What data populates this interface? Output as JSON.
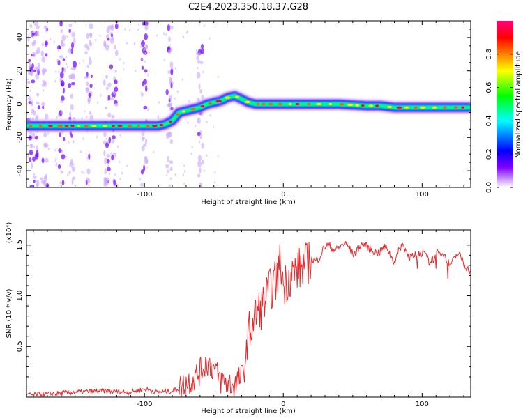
{
  "title": "C2E4.2023.350.18.37.G28",
  "chart_data": [
    {
      "type": "heatmap",
      "xlabel": "Height of straight line (km)",
      "ylabel": "Frequency (Hz)",
      "xlim": [
        -185,
        135
      ],
      "ylim": [
        -50,
        50
      ],
      "xticks": [
        -100,
        0,
        100
      ],
      "yticks": [
        -40,
        -20,
        0,
        20,
        40
      ],
      "colorbar": {
        "label": "Normalized spectral amplitude",
        "range": [
          0,
          1
        ],
        "ticks": [
          0.0,
          0.2,
          0.4,
          0.6,
          0.8
        ],
        "colors": [
          "#ffffff",
          "#8000ff",
          "#0000ff",
          "#00ffff",
          "#00ff00",
          "#ffff00",
          "#ff8000",
          "#ff0000",
          "#ff0080"
        ]
      },
      "ridge": {
        "x": [
          -185,
          -160,
          -140,
          -120,
          -100,
          -90,
          -85,
          -80,
          -75,
          -70,
          -65,
          -60,
          -55,
          -50,
          -45,
          -40,
          -35,
          -30,
          -25,
          -20,
          -10,
          0,
          20,
          40,
          60,
          70,
          80,
          100,
          120,
          135
        ],
        "y": [
          -13,
          -13,
          -13,
          -13,
          -13,
          -13,
          -12,
          -10,
          -5,
          -4,
          -3,
          -2,
          0,
          1,
          2,
          4,
          5,
          3,
          1,
          0,
          0,
          0,
          0,
          0,
          -1,
          -1,
          -2,
          -2,
          -2,
          -2
        ]
      }
    },
    {
      "type": "line",
      "xlabel": "Height of straight line (km)",
      "ylabel": "SNR (10 * v/v)",
      "multiplier": "(x10⁴)",
      "xlim": [
        -185,
        135
      ],
      "ylim": [
        0,
        1.65
      ],
      "xticks": [
        -100,
        0,
        100
      ],
      "yticks": [
        0.5,
        1.0,
        1.5
      ],
      "color": "#e8282a",
      "series": [
        {
          "x": [
            -185,
            -170,
            -150,
            -130,
            -110,
            -100,
            -90,
            -80,
            -75,
            -70,
            -65,
            -60,
            -55,
            -50,
            -45,
            -40,
            -35,
            -30,
            -28,
            -25,
            -20,
            -15,
            -10,
            -5,
            -2,
            0,
            5,
            10,
            15,
            20,
            25,
            30,
            35,
            40,
            45,
            50,
            55,
            60,
            65,
            70,
            75,
            80,
            85,
            90,
            95,
            100,
            105,
            110,
            115,
            120,
            125,
            130,
            135
          ],
          "y": [
            0.02,
            0.03,
            0.05,
            0.06,
            0.05,
            0.08,
            0.05,
            0.06,
            0.09,
            0.14,
            0.18,
            0.25,
            0.35,
            0.28,
            0.16,
            0.14,
            0.12,
            0.2,
            0.28,
            0.62,
            0.8,
            0.9,
            1.05,
            1.15,
            1.35,
            1.1,
            1.2,
            1.25,
            1.3,
            1.35,
            1.4,
            1.45,
            1.48,
            1.5,
            1.47,
            1.44,
            1.5,
            1.45,
            1.48,
            1.42,
            1.45,
            1.38,
            1.47,
            1.4,
            1.44,
            1.38,
            1.36,
            1.42,
            1.38,
            1.35,
            1.4,
            1.3,
            1.28
          ]
        }
      ]
    }
  ]
}
